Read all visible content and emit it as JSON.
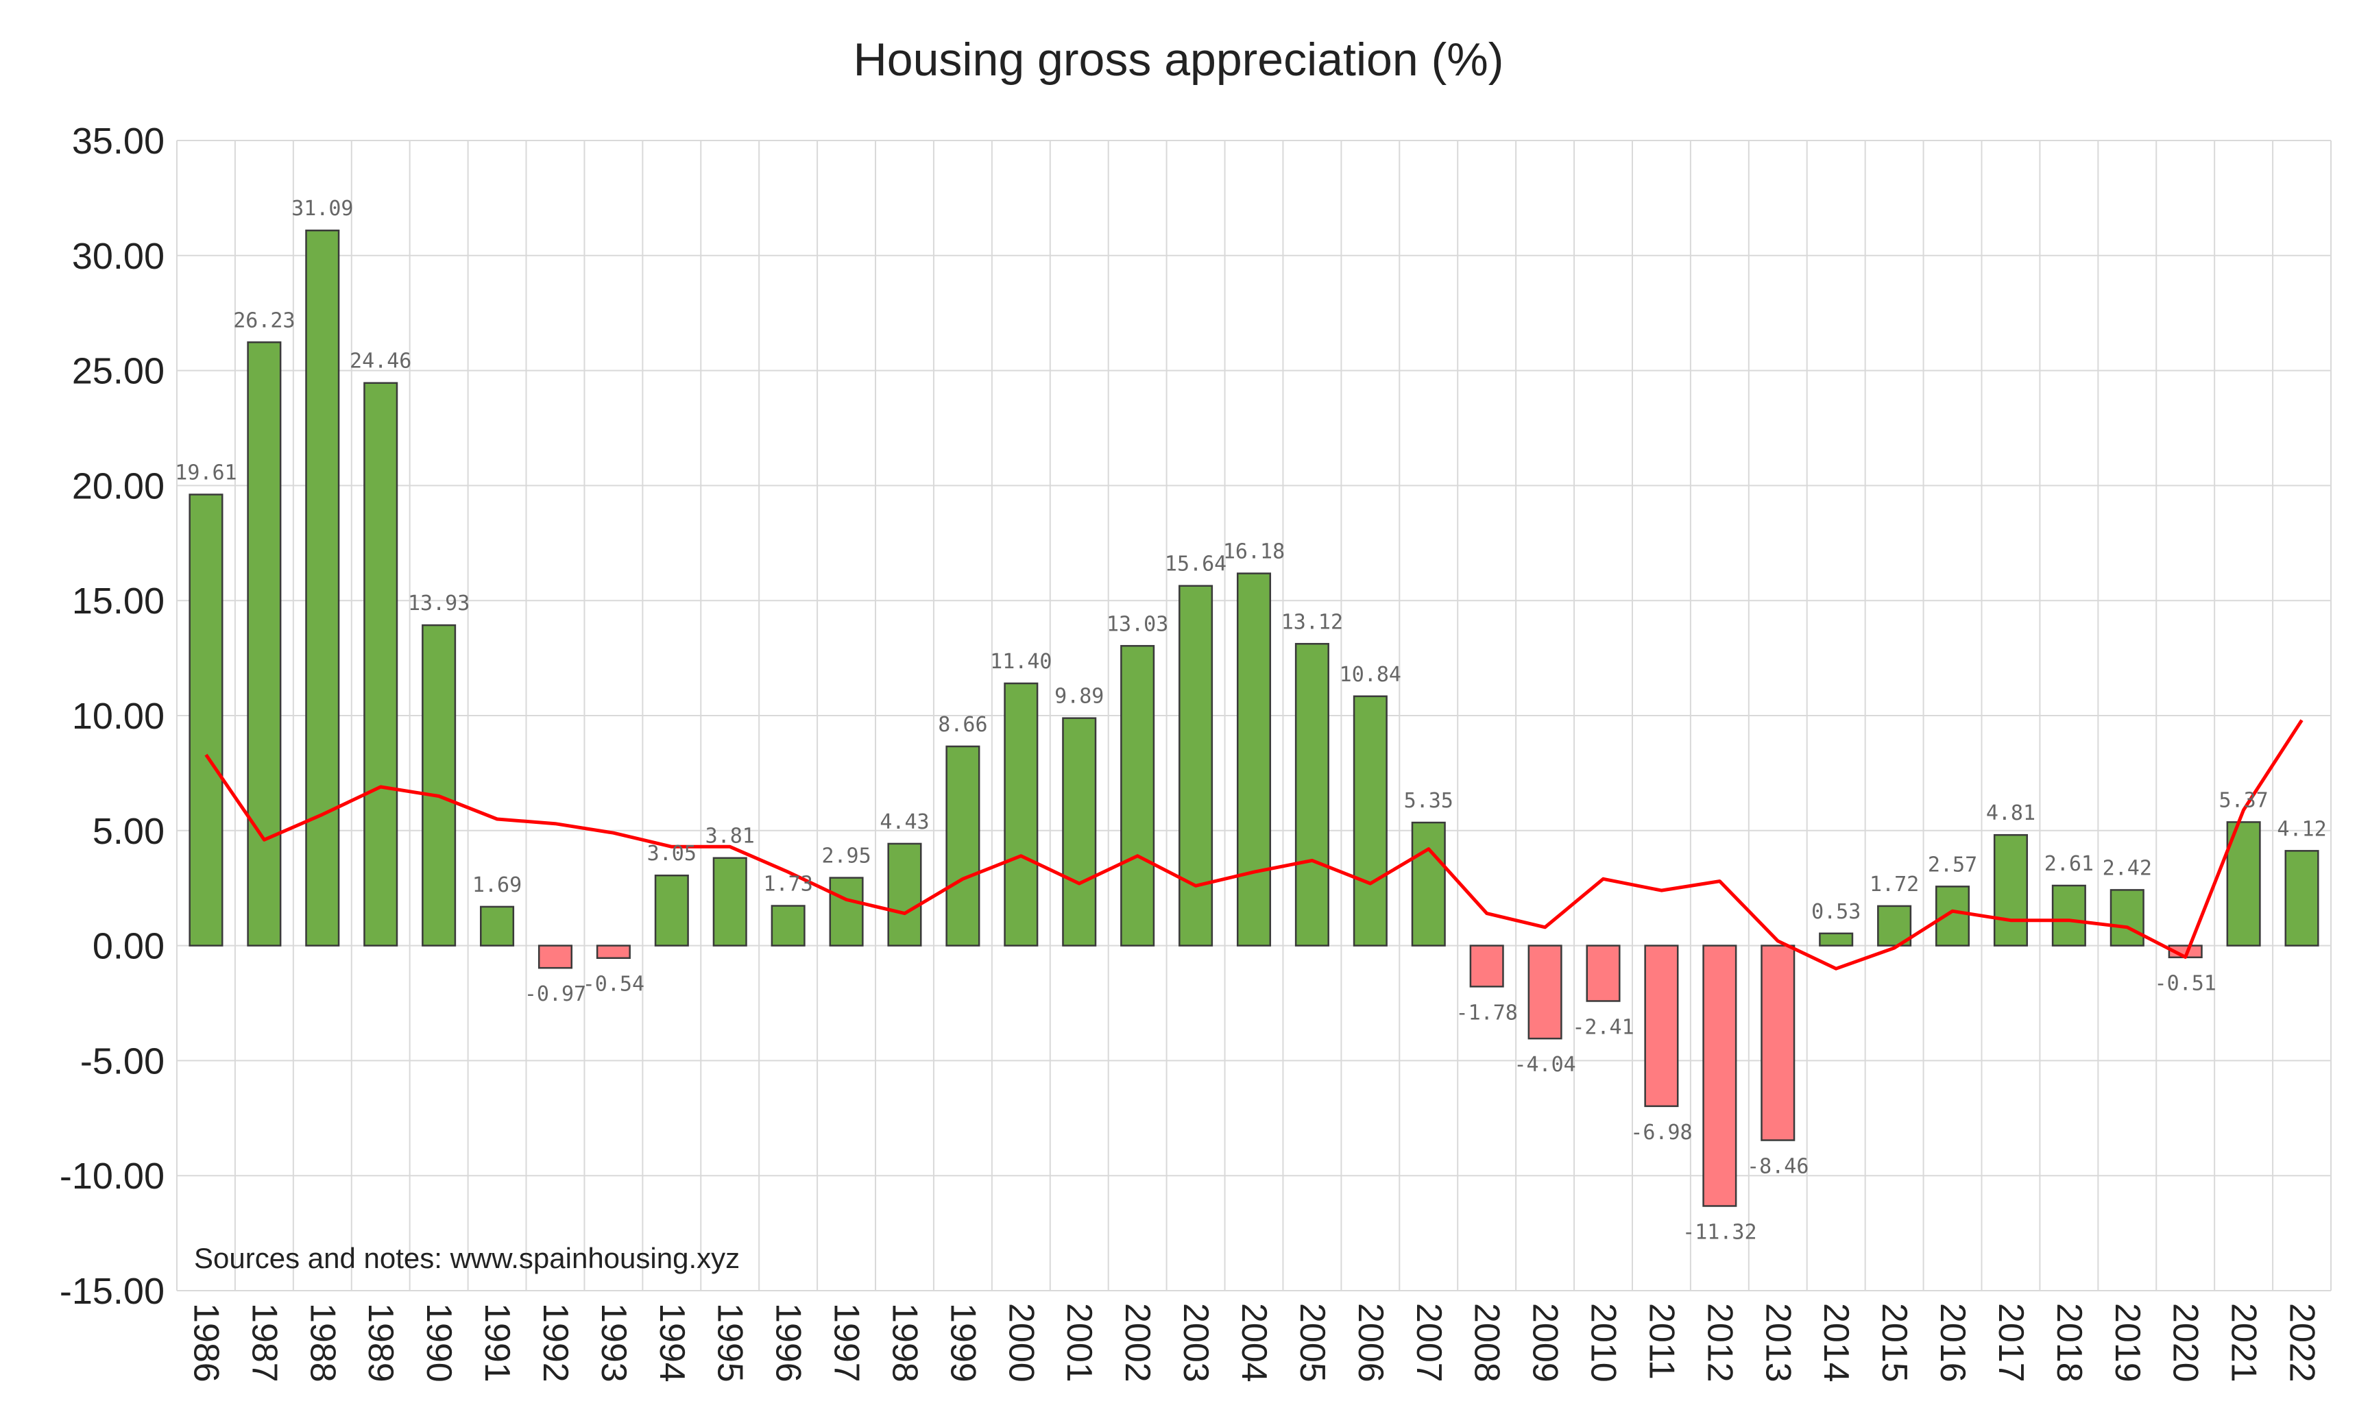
{
  "chart_data": {
    "type": "bar",
    "title": "Housing gross appreciation (%)",
    "xlabel": "",
    "ylabel": "",
    "ylim": [
      -15,
      35
    ],
    "yticks": [
      "35.00",
      "30.00",
      "25.00",
      "20.00",
      "15.00",
      "10.00",
      "5.00",
      "0.00",
      "-5.00",
      "-10.00",
      "-15.00"
    ],
    "grid": true,
    "legend": "none",
    "categories": [
      "1986",
      "1987",
      "1988",
      "1989",
      "1990",
      "1991",
      "1992",
      "1993",
      "1994",
      "1995",
      "1996",
      "1997",
      "1998",
      "1999",
      "2000",
      "2001",
      "2002",
      "2003",
      "2004",
      "2005",
      "2006",
      "2007",
      "2008",
      "2009",
      "2010",
      "2011",
      "2012",
      "2013",
      "2014",
      "2015",
      "2016",
      "2017",
      "2018",
      "2019",
      "2020",
      "2021",
      "2022"
    ],
    "series": [
      {
        "type": "bar",
        "values": [
          19.61,
          26.23,
          31.09,
          24.46,
          13.93,
          1.69,
          -0.97,
          -0.54,
          3.05,
          3.81,
          1.73,
          2.95,
          4.43,
          8.66,
          11.4,
          9.89,
          13.03,
          15.64,
          16.18,
          13.12,
          10.84,
          5.35,
          -1.78,
          -4.04,
          -2.41,
          -6.98,
          -11.32,
          -8.46,
          0.53,
          1.72,
          2.57,
          4.81,
          2.61,
          2.42,
          -0.51,
          5.37,
          4.12
        ],
        "labels": [
          "19.61",
          "26.23",
          "31.09",
          "24.46",
          "13.93",
          "1.69",
          "-0.97",
          "-0.54",
          "3.05",
          "3.81",
          "1.73",
          "2.95",
          "4.43",
          "8.66",
          "11.40",
          "9.89",
          "13.03",
          "15.64",
          "16.18",
          "13.12",
          "10.84",
          "5.35",
          "-1.78",
          "-4.04",
          "-2.41",
          "-6.98",
          "-11.32",
          "-8.46",
          "0.53",
          "1.72",
          "2.57",
          "4.81",
          "2.61",
          "2.42",
          "-0.51",
          "5.37",
          "4.12"
        ]
      },
      {
        "type": "line",
        "values": [
          8.3,
          4.6,
          5.7,
          6.9,
          6.5,
          5.5,
          5.3,
          4.9,
          4.3,
          4.3,
          3.2,
          2.0,
          1.4,
          2.9,
          3.9,
          2.7,
          3.9,
          2.6,
          3.2,
          3.7,
          2.7,
          4.2,
          1.4,
          0.8,
          2.9,
          2.4,
          2.8,
          0.2,
          -1.0,
          -0.1,
          1.5,
          1.1,
          1.1,
          0.8,
          -0.5,
          5.9,
          9.8
        ]
      }
    ],
    "colors": {
      "positive_bar": "#70ad47",
      "negative_bar": "#ff7c80",
      "bar_outline": "#3a3a3a",
      "line": "#ff0000",
      "grid": "#d9d9d9"
    },
    "annotation": "Sources and notes: www.spainhousing.xyz"
  }
}
